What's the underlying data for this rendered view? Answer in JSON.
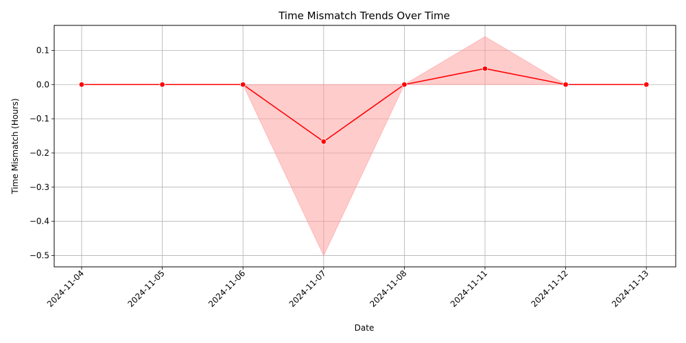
{
  "chart_data": {
    "type": "line",
    "title": "Time Mismatch Trends Over Time",
    "xlabel": "Date",
    "ylabel": "Time Mismatch (Hours)",
    "categories": [
      "2024-11-04",
      "2024-11-05",
      "2024-11-06",
      "2024-11-07",
      "2024-11-08",
      "2024-11-11",
      "2024-11-12",
      "2024-11-13"
    ],
    "series": [
      {
        "values": [
          0,
          0,
          0,
          -0.1667,
          0,
          0.0467,
          0,
          0
        ],
        "color": "#ff0000",
        "marker": "circle"
      }
    ],
    "band": {
      "lower": [
        0,
        0,
        0,
        -0.5,
        0,
        0,
        0,
        0
      ],
      "upper": [
        0,
        0,
        0,
        0,
        0,
        0.14,
        0,
        0
      ],
      "color": "#ff9999"
    },
    "yticks": [
      0.1,
      0.0,
      -0.1,
      -0.2,
      -0.3,
      -0.4,
      -0.5
    ],
    "ytick_labels": [
      "0.1",
      "0.0",
      "−0.1",
      "−0.2",
      "−0.3",
      "−0.4",
      "−0.5"
    ],
    "ylim": [
      -0.533,
      0.173
    ],
    "grid": true,
    "x_tick_rotation": 45
  }
}
